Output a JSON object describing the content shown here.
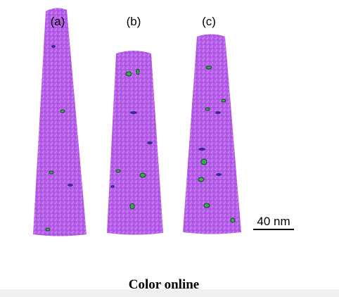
{
  "panels": [
    {
      "label": "(a)"
    },
    {
      "label": "(b)"
    },
    {
      "label": "(c)"
    }
  ],
  "scale_bar": {
    "label": "40 nm"
  },
  "caption": "Color online"
}
